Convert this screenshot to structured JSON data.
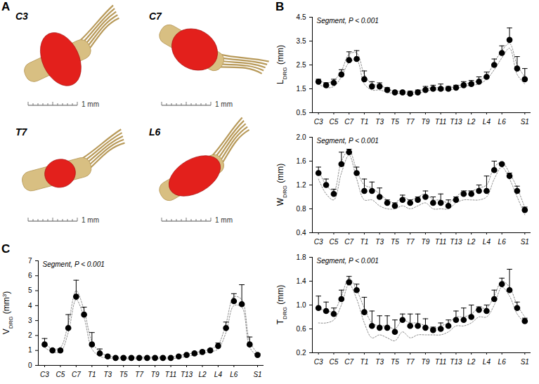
{
  "panel_a": {
    "panel": "A",
    "views": [
      {
        "label": "C3",
        "scale_bar": "1 mm"
      },
      {
        "label": "C7",
        "scale_bar": "1 mm"
      },
      {
        "label": "T7",
        "scale_bar": "1 mm"
      },
      {
        "label": "L6",
        "scale_bar": "1 mm"
      }
    ]
  },
  "chart_data": [
    {
      "type": "scatter",
      "panel": "B",
      "annotation": "Segment, P < 0.001",
      "ylabel": "LDRG (mm)",
      "ylabel_subscript": "DRG",
      "categories": [
        "C3",
        null,
        "C5",
        null,
        "C7",
        null,
        "T1",
        null,
        "T3",
        null,
        "T5",
        null,
        "T7",
        null,
        "T9",
        null,
        "T11",
        null,
        "T13",
        null,
        "L2",
        null,
        "L4",
        null,
        "L6",
        null,
        null,
        "S1"
      ],
      "series": [
        {
          "color": "#000000",
          "marker": "circle",
          "values": [
            1.8,
            1.65,
            1.75,
            2.1,
            2.7,
            2.75,
            1.9,
            1.6,
            1.6,
            1.45,
            1.35,
            1.35,
            1.3,
            1.35,
            1.45,
            1.5,
            1.5,
            1.5,
            1.55,
            1.65,
            1.7,
            1.8,
            2.0,
            2.5,
            3.0,
            3.55,
            2.35,
            1.9
          ],
          "error": [
            0.1,
            0.1,
            0.15,
            0.2,
            0.35,
            0.35,
            0.35,
            0.2,
            0.15,
            0.1,
            0.05,
            0.05,
            0.1,
            0.1,
            0.15,
            0.15,
            0.2,
            0.1,
            0.1,
            0.15,
            0.15,
            0.2,
            0.2,
            0.25,
            0.3,
            0.5,
            0.5,
            0.45
          ]
        },
        {
          "color": "#888888",
          "line_style": "dotted",
          "values": [
            1.7,
            1.55,
            1.6,
            2.0,
            2.6,
            2.7,
            1.7,
            1.45,
            1.45,
            1.35,
            1.3,
            1.3,
            1.25,
            1.3,
            1.4,
            1.45,
            1.45,
            1.45,
            1.5,
            1.6,
            1.65,
            1.7,
            1.9,
            2.3,
            2.8,
            3.2,
            2.1,
            1.7
          ]
        },
        {
          "color": "#888888",
          "line_style": "dotted",
          "values": [
            1.85,
            1.75,
            1.85,
            2.25,
            2.95,
            3.0,
            2.1,
            1.7,
            1.65,
            1.5,
            1.4,
            1.4,
            1.35,
            1.4,
            1.5,
            1.55,
            1.55,
            1.55,
            1.6,
            1.7,
            1.75,
            1.85,
            2.05,
            2.6,
            3.1,
            3.4,
            2.5,
            2.0
          ]
        }
      ],
      "ylim": [
        0.5,
        4.5
      ],
      "yticks": [
        0.5,
        1.5,
        2.5,
        3.5,
        4.5
      ]
    },
    {
      "type": "scatter",
      "annotation": "Segment, P < 0.001",
      "ylabel": "WDRG (mm)",
      "ylabel_subscript": "DRG",
      "categories": [
        "C3",
        null,
        "C5",
        null,
        "C7",
        null,
        "T1",
        null,
        "T3",
        null,
        "T5",
        null,
        "T7",
        null,
        "T9",
        null,
        "T11",
        null,
        "T13",
        null,
        "L2",
        null,
        "L4",
        null,
        "L6",
        null,
        null,
        "S1"
      ],
      "series": [
        {
          "color": "#000000",
          "marker": "circle",
          "values": [
            1.4,
            1.2,
            1.05,
            1.55,
            1.75,
            1.4,
            1.1,
            1.1,
            1.0,
            0.9,
            0.85,
            0.95,
            0.9,
            0.95,
            1.0,
            0.9,
            0.9,
            0.85,
            0.95,
            1.05,
            1.05,
            1.1,
            1.1,
            1.45,
            1.55,
            1.35,
            1.1,
            0.78
          ],
          "error": [
            0.1,
            0.1,
            0.08,
            0.2,
            0.05,
            0.1,
            0.2,
            0.15,
            0.15,
            0.05,
            0.05,
            0.08,
            0.05,
            0.05,
            0.1,
            0.1,
            0.15,
            0.1,
            0.05,
            0.05,
            0.05,
            0.1,
            0.25,
            0.15,
            0.02,
            0.05,
            0.08,
            0.05
          ]
        },
        {
          "color": "#888888",
          "line_style": "dotted",
          "values": [
            1.3,
            1.05,
            0.95,
            1.4,
            1.7,
            1.3,
            0.95,
            0.95,
            0.85,
            0.8,
            0.8,
            0.85,
            0.8,
            0.85,
            0.9,
            0.8,
            0.8,
            0.8,
            0.9,
            0.95,
            0.95,
            0.95,
            1.0,
            1.3,
            1.5,
            1.3,
            1.0,
            0.7
          ]
        },
        {
          "color": "#888888",
          "line_style": "dotted",
          "values": [
            1.45,
            1.2,
            1.1,
            1.6,
            1.78,
            1.45,
            1.2,
            1.15,
            1.05,
            0.95,
            0.9,
            1.0,
            0.95,
            1.0,
            1.05,
            0.95,
            0.95,
            0.9,
            1.0,
            1.1,
            1.1,
            1.15,
            1.2,
            1.5,
            1.58,
            1.4,
            1.15,
            0.82
          ]
        }
      ],
      "ylim": [
        0.4,
        2.0
      ],
      "yticks": [
        0.4,
        0.8,
        1.2,
        1.6,
        {
          "value": 2,
          "label": "2.0"
        }
      ]
    },
    {
      "type": "scatter",
      "annotation": "Segment, P < 0.001",
      "ylabel": "TDRG (mm)",
      "ylabel_subscript": "DRG",
      "categories": [
        "C3",
        null,
        "C5",
        null,
        "C7",
        null,
        "T1",
        null,
        "T3",
        null,
        "T5",
        null,
        "T7",
        null,
        "T9",
        null,
        "T11",
        null,
        "T13",
        null,
        "L2",
        null,
        "L4",
        null,
        "L6",
        null,
        null,
        "S1"
      ],
      "series": [
        {
          "color": "#000000",
          "marker": "circle",
          "values": [
            0.95,
            0.9,
            0.85,
            1.1,
            1.38,
            1.25,
            0.88,
            0.65,
            0.62,
            0.62,
            0.55,
            0.75,
            0.65,
            0.65,
            0.62,
            0.58,
            0.6,
            0.65,
            0.75,
            0.75,
            0.8,
            0.92,
            0.9,
            1.1,
            1.35,
            1.25,
            0.95,
            0.73
          ],
          "error": [
            0.2,
            0.15,
            0.1,
            0.15,
            0.1,
            0.1,
            0.25,
            0.25,
            0.2,
            0.2,
            0.2,
            0.1,
            0.2,
            0.2,
            0.15,
            0.05,
            0.1,
            0.1,
            0.15,
            0.2,
            0.2,
            0.05,
            0.1,
            0.15,
            0.1,
            0.35,
            0.1,
            0.05
          ]
        },
        {
          "color": "#888888",
          "line_style": "dotted",
          "values": [
            0.7,
            0.7,
            0.75,
            1.0,
            1.35,
            1.1,
            0.7,
            0.45,
            0.5,
            0.45,
            0.4,
            0.55,
            0.45,
            0.5,
            0.5,
            0.5,
            0.5,
            0.55,
            0.65,
            0.65,
            0.7,
            0.8,
            0.8,
            1.0,
            1.3,
            1.15,
            0.85,
            0.7
          ]
        },
        {
          "color": "#888888",
          "line_style": "dotted",
          "values": [
            0.95,
            0.9,
            0.9,
            1.15,
            1.45,
            1.25,
            0.95,
            0.7,
            0.65,
            0.65,
            0.6,
            0.75,
            0.7,
            0.7,
            0.65,
            0.6,
            0.65,
            0.7,
            0.8,
            0.8,
            0.85,
            0.95,
            0.95,
            1.15,
            1.4,
            1.3,
            1.0,
            0.8
          ]
        }
      ],
      "ylim": [
        0.2,
        1.8
      ],
      "yticks": [
        0.2,
        0.6,
        {
          "value": 1,
          "label": "1.0"
        },
        1.4,
        1.8
      ]
    },
    {
      "type": "scatter",
      "panel": "C",
      "annotation": "Segment, P < 0.001",
      "ylabel": "VDRG (mm3)",
      "ylabel_subscript": "DRG",
      "ylabel_superscript": "3",
      "categories": [
        "C3",
        null,
        "C5",
        null,
        "C7",
        null,
        "T1",
        null,
        "T3",
        null,
        "T5",
        null,
        "T7",
        null,
        "T9",
        null,
        "T11",
        null,
        "T13",
        null,
        "L2",
        null,
        "L4",
        null,
        "L6",
        null,
        null,
        "S1"
      ],
      "series": [
        {
          "color": "#000000",
          "marker": "circle",
          "values": [
            1.4,
            1.0,
            1.0,
            2.5,
            4.6,
            3.4,
            1.4,
            0.8,
            0.6,
            0.5,
            0.5,
            0.5,
            0.5,
            0.5,
            0.5,
            0.5,
            0.5,
            0.6,
            0.7,
            0.8,
            0.9,
            1.0,
            1.3,
            2.5,
            4.3,
            4.1,
            1.4,
            0.7
          ],
          "error": [
            0.4,
            0.1,
            0.1,
            0.9,
            1.1,
            0.5,
            0.8,
            0.3,
            0.1,
            0.05,
            0.05,
            0.05,
            0.05,
            0.05,
            0.05,
            0.05,
            0.05,
            0.05,
            0.05,
            0.1,
            0.1,
            0.1,
            0.2,
            0.4,
            0.5,
            1.3,
            0.5,
            0.1
          ]
        },
        {
          "color": "#888888",
          "line_style": "dotted",
          "values": [
            1.2,
            0.9,
            0.9,
            2.2,
            4.4,
            3.2,
            1.1,
            0.6,
            0.5,
            0.45,
            0.45,
            0.45,
            0.45,
            0.45,
            0.45,
            0.45,
            0.45,
            0.5,
            0.6,
            0.7,
            0.8,
            0.9,
            1.1,
            2.2,
            4.0,
            3.9,
            1.2,
            0.6
          ]
        },
        {
          "color": "#888888",
          "line_style": "dotted",
          "values": [
            1.5,
            1.1,
            1.2,
            2.8,
            5.0,
            3.7,
            1.6,
            0.9,
            0.65,
            0.55,
            0.55,
            0.55,
            0.55,
            0.55,
            0.55,
            0.55,
            0.55,
            0.65,
            0.75,
            0.85,
            0.95,
            1.1,
            1.4,
            2.8,
            4.6,
            4.4,
            1.6,
            0.8
          ]
        }
      ],
      "ylim": [
        0,
        7
      ],
      "yticks": [
        0,
        1,
        2,
        3,
        4,
        5,
        6,
        7
      ]
    }
  ]
}
